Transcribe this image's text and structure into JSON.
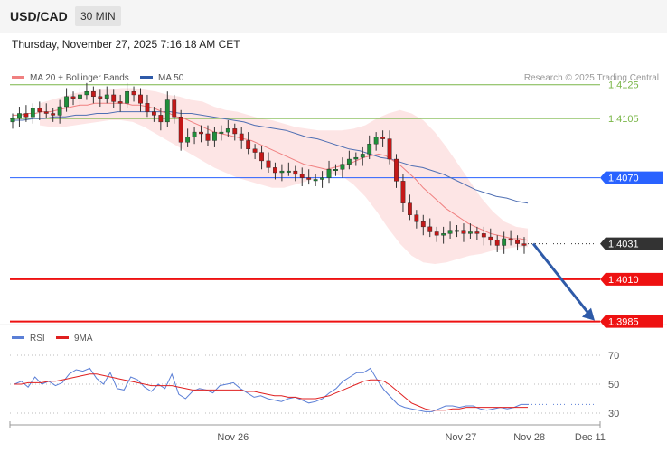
{
  "header": {
    "symbol": "USD/CAD",
    "timeframe": "30 MIN"
  },
  "datetime": "Thursday, November 27, 2025 7:16:18 AM CET",
  "legend_main": [
    {
      "label": "MA 20 + Bollinger Bands",
      "color": "#f08080"
    },
    {
      "label": "MA 50",
      "color": "#2e5aa8"
    }
  ],
  "copyright": "Research © 2025 Trading Central",
  "legend_rsi": [
    {
      "label": "RSI",
      "color": "#5b7fd6"
    },
    {
      "label": "9MA",
      "color": "#e02020"
    }
  ],
  "x_labels": [
    {
      "label": "Nov 26",
      "pos": 0.378
    },
    {
      "label": "Nov 27",
      "pos": 0.764
    },
    {
      "label": "Nov 28",
      "pos": 0.88
    },
    {
      "label": "Dec 11",
      "pos": 0.983
    }
  ],
  "chart_data": [
    {
      "type": "line",
      "title": "USD/CAD 30 MIN",
      "ylim": [
        1.398,
        1.4135
      ],
      "levels": [
        {
          "value": 1.4125,
          "label": "1.4125",
          "color": "#7ab648",
          "kind": "resistance"
        },
        {
          "value": 1.4105,
          "label": "1.4105",
          "color": "#7ab648",
          "kind": "resistance"
        },
        {
          "value": 1.407,
          "label": "1.4070",
          "color": "#2962ff",
          "kind": "pivot"
        },
        {
          "value": 1.4031,
          "label": "1.4031",
          "color": "#333333",
          "kind": "last"
        },
        {
          "value": 1.401,
          "label": "1.4010",
          "color": "#ee1111",
          "kind": "support"
        },
        {
          "value": 1.3985,
          "label": "1.3985",
          "color": "#ee1111",
          "kind": "support"
        }
      ],
      "forecast": {
        "from": 1.4031,
        "to": 1.3985
      },
      "close": [
        1.4105,
        1.4108,
        1.4106,
        1.4111,
        1.4109,
        1.4108,
        1.4107,
        1.4112,
        1.4118,
        1.4117,
        1.4119,
        1.4121,
        1.4118,
        1.4117,
        1.4119,
        1.4115,
        1.4114,
        1.4121,
        1.4119,
        1.4114,
        1.4109,
        1.4107,
        1.4103,
        1.4116,
        1.4106,
        1.4091,
        1.4094,
        1.4097,
        1.4096,
        1.4092,
        1.4097,
        1.4097,
        1.4099,
        1.4096,
        1.4092,
        1.4087,
        1.4085,
        1.408,
        1.4076,
        1.4073,
        1.4074,
        1.4074,
        1.4072,
        1.407,
        1.4069,
        1.4069,
        1.407,
        1.4075,
        1.4075,
        1.4078,
        1.4081,
        1.4082,
        1.4084,
        1.409,
        1.4094,
        1.4093,
        1.4081,
        1.4068,
        1.4055,
        1.4048,
        1.4044,
        1.4041,
        1.4038,
        1.4036,
        1.4037,
        1.4039,
        1.4039,
        1.4037,
        1.4038,
        1.4037,
        1.4035,
        1.4033,
        1.403,
        1.4034,
        1.4033,
        1.4031,
        1.403
      ],
      "ma20": [
        1.4107,
        1.4107,
        1.4108,
        1.4108,
        1.4109,
        1.4109,
        1.411,
        1.4111,
        1.4112,
        1.4113,
        1.4113,
        1.4114,
        1.4114,
        1.4114,
        1.4114,
        1.4114,
        1.4113,
        1.4113,
        1.4112,
        1.4111,
        1.4109,
        1.4108,
        1.4106,
        1.4105,
        1.4103,
        1.4101,
        1.4099,
        1.4097,
        1.4096,
        1.4095,
        1.4094,
        1.4093,
        1.4092,
        1.409,
        1.4088,
        1.4086,
        1.4084,
        1.4082,
        1.408,
        1.4078,
        1.4077,
        1.4076,
        1.4075,
        1.4076,
        1.4077,
        1.4078,
        1.408,
        1.4082,
        1.4083,
        1.4084,
        1.4083,
        1.408,
        1.4077,
        1.4073,
        1.4069,
        1.4064,
        1.406,
        1.4056,
        1.4052,
        1.4049,
        1.4046,
        1.4043,
        1.4041,
        1.4039,
        1.4037,
        1.4036,
        1.4035,
        1.4034,
        1.4034,
        1.4033
      ],
      "ma50": [
        1.4104,
        1.4104,
        1.4105,
        1.4105,
        1.4106,
        1.4106,
        1.4107,
        1.4107,
        1.4108,
        1.4108,
        1.4109,
        1.4109,
        1.4109,
        1.4109,
        1.4109,
        1.4109,
        1.4108,
        1.4108,
        1.4107,
        1.4106,
        1.4105,
        1.4104,
        1.4103,
        1.4101,
        1.41,
        1.4099,
        1.4098,
        1.4096,
        1.4094,
        1.4093,
        1.4091,
        1.4089,
        1.4087,
        1.4086,
        1.4084,
        1.4082,
        1.4081,
        1.4079,
        1.4077,
        1.4076,
        1.4074,
        1.4072,
        1.4069,
        1.4066,
        1.4063,
        1.4061,
        1.4059,
        1.4058,
        1.4056,
        1.4055
      ],
      "band_upper": [
        1.4114,
        1.4116,
        1.4118,
        1.412,
        1.4121,
        1.4122,
        1.4122,
        1.4123,
        1.4123,
        1.4122,
        1.4121,
        1.4119,
        1.4118,
        1.4116,
        1.4115,
        1.4112,
        1.411,
        1.4109,
        1.4107,
        1.4105,
        1.4104,
        1.4102,
        1.41,
        1.4099,
        1.4098,
        1.4098,
        1.4098,
        1.4099,
        1.4101,
        1.4105,
        1.4108,
        1.411,
        1.4108,
        1.4104,
        1.4097,
        1.4088,
        1.4078,
        1.4068,
        1.4058,
        1.405,
        1.4044,
        1.4041,
        1.404
      ],
      "band_lower": [
        1.4101,
        1.41,
        1.41,
        1.4101,
        1.4102,
        1.4103,
        1.4104,
        1.4104,
        1.4103,
        1.41,
        1.4096,
        1.4092,
        1.4088,
        1.4084,
        1.408,
        1.4076,
        1.4073,
        1.407,
        1.4068,
        1.4066,
        1.4064,
        1.4064,
        1.4066,
        1.4068,
        1.407,
        1.4072,
        1.4071,
        1.4066,
        1.4059,
        1.405,
        1.404,
        1.4031,
        1.4024,
        1.402,
        1.4019,
        1.402,
        1.4022,
        1.4024,
        1.4025,
        1.4027,
        1.4028,
        1.4029,
        1.4029
      ]
    },
    {
      "type": "line",
      "title": "RSI",
      "ylim": [
        25,
        75
      ],
      "ticks": [
        70,
        50,
        30
      ],
      "series": [
        {
          "name": "RSI",
          "color": "#5b7fd6",
          "values": [
            50,
            52,
            48,
            55,
            50,
            52,
            49,
            51,
            57,
            60,
            59,
            61,
            54,
            50,
            58,
            47,
            46,
            55,
            53,
            48,
            45,
            50,
            47,
            57,
            43,
            40,
            45,
            47,
            46,
            44,
            49,
            50,
            51,
            47,
            44,
            41,
            42,
            40,
            39,
            38,
            40,
            41,
            39,
            37,
            38,
            40,
            44,
            47,
            52,
            55,
            58,
            58,
            61,
            53,
            46,
            41,
            36,
            34,
            33,
            32,
            31,
            31,
            33,
            35,
            35,
            34,
            35,
            35,
            33,
            32,
            33,
            34,
            33,
            34,
            36,
            36
          ]
        },
        {
          "name": "9MA",
          "color": "#e02020",
          "values": [
            50,
            50,
            51,
            51,
            51,
            52,
            52,
            53,
            54,
            55,
            56,
            57,
            57,
            56,
            55,
            54,
            53,
            52,
            51,
            50,
            49,
            49,
            49,
            49,
            48,
            47,
            46,
            46,
            46,
            46,
            46,
            46,
            46,
            46,
            45,
            45,
            44,
            43,
            42,
            42,
            41,
            41,
            40,
            40,
            40,
            41,
            42,
            44,
            46,
            48,
            50,
            52,
            53,
            53,
            52,
            49,
            45,
            41,
            37,
            35,
            33,
            32,
            32,
            32,
            33,
            33,
            34,
            34,
            34,
            34,
            34,
            34,
            34,
            34,
            34,
            34
          ]
        }
      ]
    }
  ]
}
